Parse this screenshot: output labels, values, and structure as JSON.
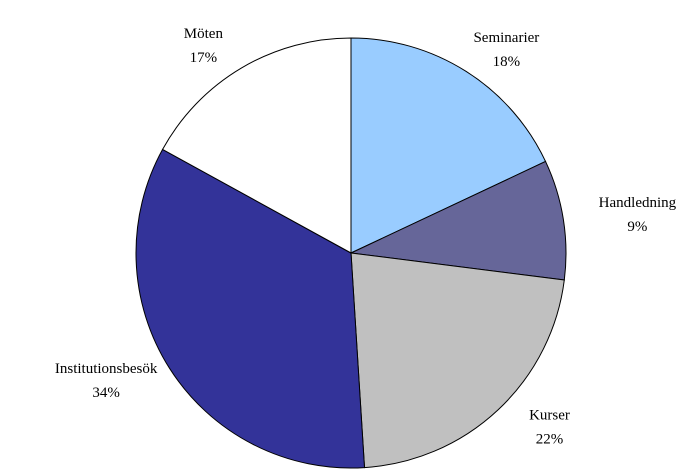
{
  "chart_data": {
    "type": "pie",
    "categories": [
      "Seminarier",
      "Handledning",
      "Kurser",
      "Institutionsbesök",
      "Möten"
    ],
    "values": [
      18,
      9,
      22,
      34,
      17
    ],
    "value_labels": [
      "18%",
      "9%",
      "22%",
      "34%",
      "17%"
    ],
    "colors": [
      "#99ccff",
      "#666699",
      "#c0c0c0",
      "#333399",
      "#ffffff"
    ]
  }
}
